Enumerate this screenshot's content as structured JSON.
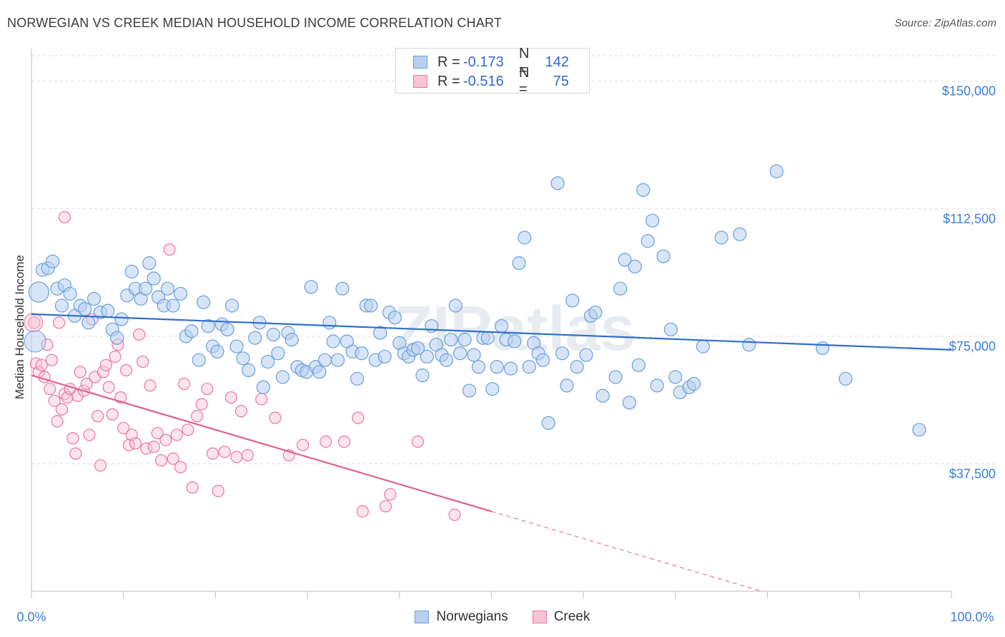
{
  "header": {
    "title": "NORWEGIAN VS CREEK MEDIAN HOUSEHOLD INCOME CORRELATION CHART",
    "source": "Source: ZipAtlas.com"
  },
  "legend_top": {
    "rows": [
      {
        "r_label": "R =",
        "r_value": "-0.173",
        "n_label": "N =",
        "n_value": "142"
      },
      {
        "r_label": "R =",
        "r_value": "-0.516",
        "n_label": "N =",
        "n_value": "75"
      }
    ]
  },
  "legend_bottom": [
    "Norwegians",
    "Creek"
  ],
  "watermark": "ZIPatlas",
  "chart_data": {
    "type": "scatter",
    "title": "NORWEGIAN VS CREEK MEDIAN HOUSEHOLD INCOME CORRELATION CHART",
    "ylabel": "Median Household Income",
    "xlabel": "",
    "xlim": [
      0,
      100
    ],
    "ylim": [
      0,
      157500
    ],
    "x_tick_labels": [
      "0.0%",
      "100.0%"
    ],
    "y_ticks": [
      37500,
      75000,
      112500,
      150000
    ],
    "y_tick_labels": [
      "$37,500",
      "$75,000",
      "$112,500",
      "$150,000"
    ],
    "grid": "horizontal dashed",
    "colors": {
      "blue": "#6a9fdc",
      "blue_fill": "#b8d0f0",
      "blue_line": "#2e6fcc",
      "pink": "#e8789f",
      "pink_fill": "#f8c4d4",
      "pink_line": "#e06090",
      "tick_text": "#3b7dd8"
    },
    "series": [
      {
        "name": "Norwegians",
        "trend": {
          "x0": 0,
          "y0": 81500,
          "x1": 100,
          "y1": 71000
        },
        "points": [
          [
            0.8,
            88000
          ],
          [
            1.2,
            94500
          ],
          [
            1.8,
            95000
          ],
          [
            2.3,
            97000
          ],
          [
            2.8,
            89000
          ],
          [
            3.3,
            84000
          ],
          [
            3.6,
            90000
          ],
          [
            4.2,
            87500
          ],
          [
            4.7,
            81000
          ],
          [
            5.3,
            84000
          ],
          [
            5.8,
            83000
          ],
          [
            6.2,
            79000
          ],
          [
            6.8,
            86000
          ],
          [
            7.5,
            82000
          ],
          [
            8.3,
            82500
          ],
          [
            8.8,
            77000
          ],
          [
            9.3,
            74500
          ],
          [
            9.8,
            80000
          ],
          [
            10.4,
            87000
          ],
          [
            10.9,
            94000
          ],
          [
            11.3,
            89000
          ],
          [
            11.9,
            86000
          ],
          [
            12.4,
            89000
          ],
          [
            12.8,
            96500
          ],
          [
            13.3,
            92000
          ],
          [
            13.8,
            86500
          ],
          [
            14.4,
            84000
          ],
          [
            14.8,
            89000
          ],
          [
            15.4,
            84000
          ],
          [
            16.2,
            87500
          ],
          [
            16.8,
            75000
          ],
          [
            17.4,
            76500
          ],
          [
            18.2,
            68000
          ],
          [
            18.7,
            85000
          ],
          [
            19.2,
            78000
          ],
          [
            19.7,
            72000
          ],
          [
            20.2,
            70500
          ],
          [
            20.7,
            78500
          ],
          [
            21.3,
            77000
          ],
          [
            21.8,
            84000
          ],
          [
            22.3,
            72000
          ],
          [
            23.0,
            68500
          ],
          [
            23.6,
            65000
          ],
          [
            24.3,
            74500
          ],
          [
            24.8,
            79000
          ],
          [
            25.2,
            60000
          ],
          [
            25.7,
            67500
          ],
          [
            26.3,
            75500
          ],
          [
            26.8,
            70000
          ],
          [
            27.3,
            63000
          ],
          [
            27.9,
            76000
          ],
          [
            28.3,
            74000
          ],
          [
            28.9,
            66000
          ],
          [
            29.4,
            65000
          ],
          [
            29.9,
            64500
          ],
          [
            30.4,
            89500
          ],
          [
            30.9,
            66000
          ],
          [
            31.3,
            64500
          ],
          [
            31.9,
            68000
          ],
          [
            32.4,
            79000
          ],
          [
            32.8,
            73500
          ],
          [
            33.3,
            68000
          ],
          [
            33.8,
            89000
          ],
          [
            34.3,
            73500
          ],
          [
            34.9,
            70500
          ],
          [
            35.4,
            62500
          ],
          [
            35.9,
            70000
          ],
          [
            36.4,
            84000
          ],
          [
            36.9,
            84000
          ],
          [
            37.4,
            68000
          ],
          [
            37.9,
            76000
          ],
          [
            38.4,
            69000
          ],
          [
            38.9,
            82000
          ],
          [
            39.5,
            80500
          ],
          [
            40.0,
            73000
          ],
          [
            40.5,
            70000
          ],
          [
            41.0,
            69000
          ],
          [
            41.5,
            71000
          ],
          [
            42.0,
            71500
          ],
          [
            42.5,
            63500
          ],
          [
            43.0,
            69000
          ],
          [
            43.5,
            78000
          ],
          [
            44.0,
            72500
          ],
          [
            44.6,
            69500
          ],
          [
            45.1,
            68000
          ],
          [
            45.6,
            74000
          ],
          [
            46.1,
            84000
          ],
          [
            46.6,
            70000
          ],
          [
            47.1,
            74000
          ],
          [
            47.6,
            59000
          ],
          [
            48.1,
            69500
          ],
          [
            48.6,
            66000
          ],
          [
            49.1,
            74500
          ],
          [
            49.6,
            74500
          ],
          [
            50.1,
            59500
          ],
          [
            50.6,
            66000
          ],
          [
            51.1,
            78000
          ],
          [
            51.6,
            74000
          ],
          [
            52.1,
            65500
          ],
          [
            52.5,
            73500
          ],
          [
            53.0,
            96500
          ],
          [
            53.6,
            104000
          ],
          [
            54.1,
            66000
          ],
          [
            54.6,
            73000
          ],
          [
            55.1,
            70000
          ],
          [
            55.6,
            68000
          ],
          [
            56.2,
            49500
          ],
          [
            57.2,
            120000
          ],
          [
            57.7,
            70000
          ],
          [
            58.2,
            60500
          ],
          [
            58.8,
            85500
          ],
          [
            59.3,
            66000
          ],
          [
            60.3,
            69500
          ],
          [
            60.8,
            81000
          ],
          [
            61.3,
            82000
          ],
          [
            62.1,
            57500
          ],
          [
            63.5,
            63000
          ],
          [
            64.0,
            89000
          ],
          [
            64.5,
            97500
          ],
          [
            65.0,
            55500
          ],
          [
            65.6,
            95500
          ],
          [
            66.0,
            66500
          ],
          [
            66.5,
            118000
          ],
          [
            67.0,
            103000
          ],
          [
            67.5,
            109000
          ],
          [
            68.0,
            60500
          ],
          [
            68.7,
            98500
          ],
          [
            69.5,
            77000
          ],
          [
            70.0,
            63000
          ],
          [
            70.5,
            58500
          ],
          [
            71.5,
            60000
          ],
          [
            72.0,
            61000
          ],
          [
            73.0,
            72000
          ],
          [
            75.0,
            104000
          ],
          [
            77.0,
            105000
          ],
          [
            78.0,
            72500
          ],
          [
            81.0,
            123500
          ],
          [
            86.0,
            71500
          ],
          [
            88.5,
            62500
          ],
          [
            96.5,
            47500
          ]
        ]
      },
      {
        "name": "Creek",
        "trend": {
          "x0": 0,
          "y0": 63500,
          "x1": 50,
          "y1": 23500,
          "dash_to_x": 86,
          "dash_to_y": -5000
        },
        "points": [
          [
            0.3,
            79000
          ],
          [
            0.5,
            67000
          ],
          [
            0.8,
            64500
          ],
          [
            1.1,
            66500
          ],
          [
            1.4,
            63000
          ],
          [
            1.7,
            72500
          ],
          [
            2.0,
            59500
          ],
          [
            2.2,
            68000
          ],
          [
            2.5,
            56000
          ],
          [
            2.8,
            50000
          ],
          [
            3.0,
            79000
          ],
          [
            3.3,
            53500
          ],
          [
            3.6,
            58000
          ],
          [
            3.9,
            57000
          ],
          [
            4.2,
            59500
          ],
          [
            4.5,
            45000
          ],
          [
            4.8,
            40500
          ],
          [
            5.0,
            57500
          ],
          [
            5.3,
            64500
          ],
          [
            5.7,
            59000
          ],
          [
            6.0,
            61000
          ],
          [
            6.3,
            46000
          ],
          [
            6.6,
            80000
          ],
          [
            6.9,
            63000
          ],
          [
            7.2,
            51500
          ],
          [
            7.5,
            37000
          ],
          [
            7.8,
            64500
          ],
          [
            8.1,
            66500
          ],
          [
            8.4,
            60000
          ],
          [
            8.8,
            52000
          ],
          [
            9.1,
            69000
          ],
          [
            9.4,
            72500
          ],
          [
            9.7,
            57000
          ],
          [
            10.0,
            48000
          ],
          [
            10.3,
            65000
          ],
          [
            10.6,
            43000
          ],
          [
            10.9,
            46000
          ],
          [
            11.3,
            43500
          ],
          [
            11.7,
            75500
          ],
          [
            12.1,
            67500
          ],
          [
            12.5,
            42000
          ],
          [
            12.9,
            60500
          ],
          [
            13.3,
            42500
          ],
          [
            13.7,
            46500
          ],
          [
            14.1,
            38500
          ],
          [
            14.6,
            44500
          ],
          [
            15.0,
            100500
          ],
          [
            15.4,
            39000
          ],
          [
            15.8,
            46000
          ],
          [
            16.2,
            36500
          ],
          [
            16.6,
            61000
          ],
          [
            17.0,
            47500
          ],
          [
            17.5,
            30500
          ],
          [
            18.0,
            51500
          ],
          [
            18.5,
            55000
          ],
          [
            19.1,
            59500
          ],
          [
            19.7,
            40500
          ],
          [
            20.3,
            29500
          ],
          [
            21.0,
            41000
          ],
          [
            21.7,
            57000
          ],
          [
            22.3,
            39500
          ],
          [
            22.8,
            53000
          ],
          [
            23.5,
            40000
          ],
          [
            25.0,
            56500
          ],
          [
            26.5,
            51000
          ],
          [
            28.0,
            40000
          ],
          [
            29.5,
            43000
          ],
          [
            32.0,
            44000
          ],
          [
            34.0,
            44000
          ],
          [
            35.5,
            51000
          ],
          [
            36.0,
            23500
          ],
          [
            38.5,
            25000
          ],
          [
            39.0,
            28500
          ],
          [
            42.0,
            44000
          ],
          [
            46.0,
            22500
          ],
          [
            3.6,
            110000
          ]
        ]
      }
    ]
  }
}
